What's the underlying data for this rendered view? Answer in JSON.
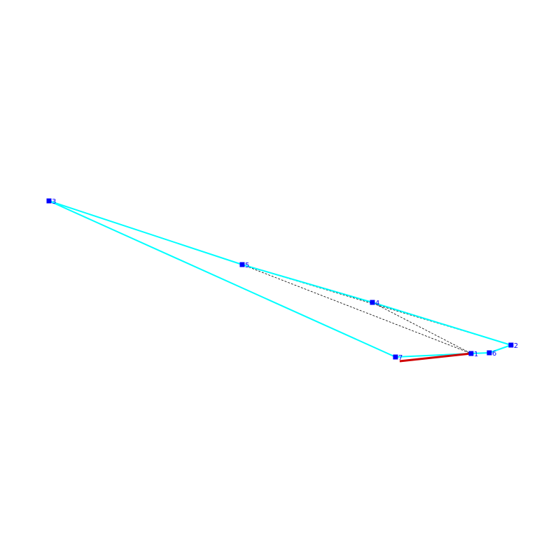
{
  "colors": {
    "background": "#ffffff",
    "outline": "#00ffff",
    "highlight": "#d00000",
    "dashed": "#000000",
    "node": "#0000ff",
    "label": "#0000ff"
  },
  "nodes": [
    {
      "id": "1",
      "label": "1"
    },
    {
      "id": "2",
      "label": "2"
    },
    {
      "id": "3",
      "label": "3"
    },
    {
      "id": "4",
      "label": "4"
    },
    {
      "id": "5",
      "label": "5"
    },
    {
      "id": "6",
      "label": "6"
    },
    {
      "id": "7",
      "label": "7"
    }
  ],
  "outline_path": [
    "7",
    "1",
    "6",
    "2",
    "4",
    "5",
    "3",
    "7"
  ],
  "dashed_edges": [
    [
      "3",
      "5"
    ],
    [
      "5",
      "2"
    ],
    [
      "5",
      "1"
    ],
    [
      "4",
      "1"
    ]
  ],
  "highlight_edge": [
    "7",
    "1"
  ]
}
